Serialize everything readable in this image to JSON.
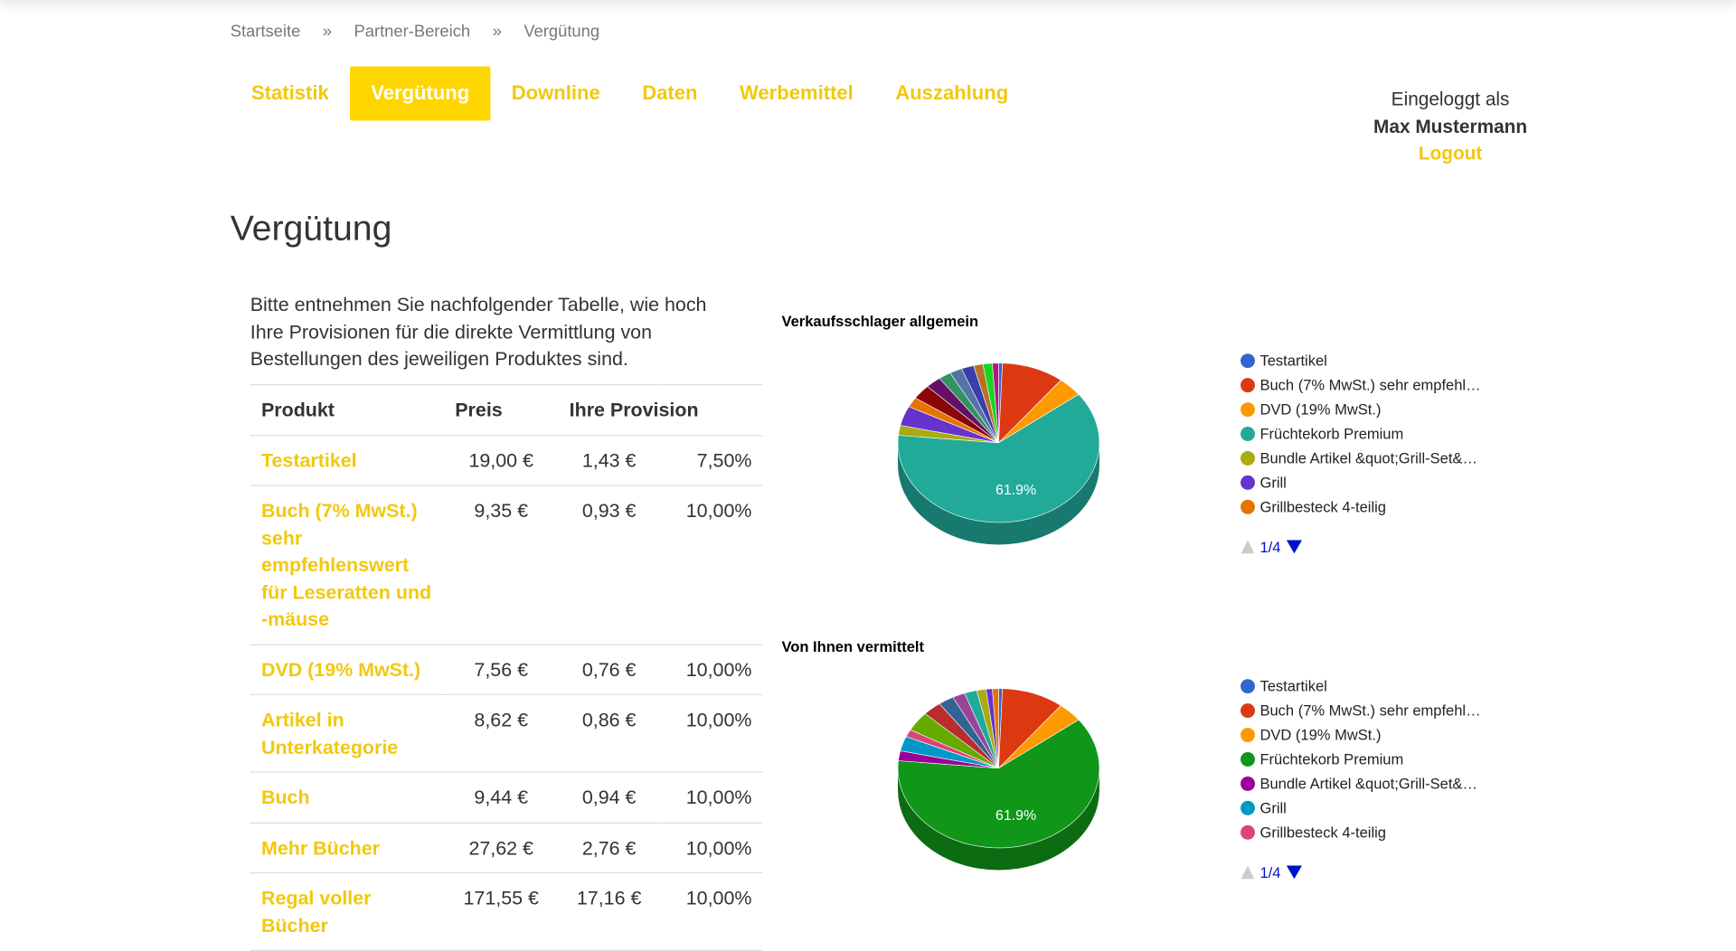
{
  "breadcrumb": {
    "items": [
      "Startseite",
      "Partner-Bereich",
      "Vergütung"
    ],
    "separator": "»"
  },
  "nav": {
    "tabs": [
      "Statistik",
      "Vergütung",
      "Downline",
      "Daten",
      "Werbemittel",
      "Auszahlung"
    ],
    "active": 1
  },
  "login": {
    "label": "Eingeloggt als",
    "user": "Max Mustermann",
    "logout": "Logout"
  },
  "page_title": "Vergütung",
  "intro": "Bitte entnehmen Sie nachfolgender Tabelle, wie hoch Ihre Provisionen für die direkte Vermittlung von Bestellungen des jeweiligen Produktes sind.",
  "table": {
    "headers": [
      "Produkt",
      "Preis",
      "Ihre Provision"
    ],
    "rows": [
      [
        "Testartikel",
        "19,00 €",
        "1,43 €",
        "7,50%"
      ],
      [
        "Buch (7% MwSt.) sehr empfehlenswert für Leseratten und -mäuse",
        "9,35 €",
        "0,93 €",
        "10,00%"
      ],
      [
        "DVD (19% MwSt.)",
        "7,56 €",
        "0,76 €",
        "10,00%"
      ],
      [
        "Artikel in Unterkategorie",
        "8,62 €",
        "0,86 €",
        "10,00%"
      ],
      [
        "Buch",
        "9,44 €",
        "0,94 €",
        "10,00%"
      ],
      [
        "Mehr Bücher",
        "27,62 €",
        "2,76 €",
        "10,00%"
      ],
      [
        "Regal voller Bücher",
        "171,55 €",
        "17,16 €",
        "10,00%"
      ]
    ]
  },
  "chart_data": [
    {
      "type": "pie",
      "title": "Verkaufsschlager allgemein",
      "categories": [
        "Testartikel",
        "Buch (7% MwSt.) sehr empfehl…",
        "DVD (19% MwSt.)",
        "Früchtekorb Premium",
        "Bundle Artikel &quot;Grill-Set&…",
        "Grill",
        "Grillbesteck 4-teilig",
        null,
        null,
        null,
        null,
        null,
        null,
        null,
        null
      ],
      "values": [
        0.6,
        10,
        4,
        61.9,
        2,
        4,
        2,
        3,
        2.5,
        2,
        2,
        2,
        1.5,
        1.5,
        1
      ],
      "value_labels": [
        null,
        null,
        null,
        "61.9%",
        null,
        null,
        null,
        null,
        null,
        null,
        null,
        null,
        null,
        null,
        null
      ],
      "colors": [
        "#3366cc",
        "#dc3912",
        "#ff9900",
        "#22aa99",
        "#aaaa11",
        "#6633cc",
        "#e67300",
        "#8b0707",
        "#651067",
        "#329262",
        "#5574a6",
        "#3b3eac",
        "#b77322",
        "#16d620",
        "#b91383"
      ],
      "legend_page": "1/4"
    },
    {
      "type": "pie",
      "title": "Von Ihnen vermittelt",
      "categories": [
        "Testartikel",
        "Buch (7% MwSt.) sehr empfehl…",
        "DVD (19% MwSt.)",
        "Früchtekorb Premium",
        "Bundle Artikel &quot;Grill-Set&…",
        "Grill",
        "Grillbesteck 4-teilig",
        null,
        null,
        null,
        null,
        null,
        null,
        null,
        null
      ],
      "values": [
        0.6,
        10,
        4,
        61.9,
        2,
        3,
        1.5,
        4,
        3,
        2.5,
        2,
        2,
        1.5,
        1,
        1
      ],
      "value_labels": [
        null,
        null,
        null,
        "61.9%",
        null,
        null,
        null,
        null,
        null,
        null,
        null,
        null,
        null,
        null,
        null
      ],
      "colors": [
        "#3366cc",
        "#dc3912",
        "#ff9900",
        "#109618",
        "#990099",
        "#0099c6",
        "#dd4477",
        "#66aa00",
        "#b82e2e",
        "#316395",
        "#994499",
        "#22aa99",
        "#aaaa11",
        "#6633cc",
        "#e67300"
      ],
      "legend_page": "1/4"
    }
  ]
}
